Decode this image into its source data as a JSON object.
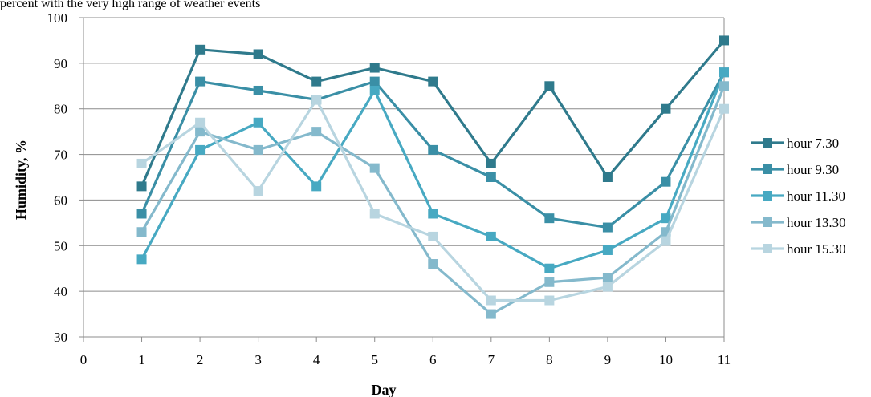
{
  "caption": "percent with the very high range of weather events",
  "chart_data": {
    "type": "line",
    "title": "",
    "xlabel": "Day",
    "ylabel": "Humidity, %",
    "xlim": [
      0,
      11
    ],
    "ylim": [
      30,
      100
    ],
    "x_ticks": [
      "0",
      "1",
      "2",
      "3",
      "4",
      "5",
      "6",
      "7",
      "8",
      "9",
      "10",
      "11"
    ],
    "y_ticks": [
      "30",
      "40",
      "50",
      "60",
      "70",
      "80",
      "90",
      "100"
    ],
    "grid": "horizontal",
    "legend_position": "right",
    "x": [
      1,
      2,
      3,
      4,
      5,
      6,
      7,
      8,
      9,
      10,
      11
    ],
    "series": [
      {
        "name": "hour 7.30",
        "color": "#2f7a8c",
        "values": [
          63,
          93,
          92,
          86,
          89,
          86,
          68,
          85,
          65,
          80,
          95
        ]
      },
      {
        "name": "hour 9.30",
        "color": "#3a8fa6",
        "values": [
          57,
          86,
          84,
          82,
          86,
          71,
          65,
          56,
          54,
          64,
          88
        ]
      },
      {
        "name": "hour 11.30",
        "color": "#47a9c2",
        "values": [
          47,
          71,
          77,
          63,
          84,
          57,
          52,
          45,
          49,
          56,
          88
        ]
      },
      {
        "name": "hour 13.30",
        "color": "#84b9cc",
        "values": [
          53,
          75,
          71,
          75,
          67,
          46,
          35,
          42,
          43,
          53,
          85
        ]
      },
      {
        "name": "hour 15.30",
        "color": "#b8d5e0",
        "values": [
          68,
          77,
          62,
          82,
          57,
          52,
          38,
          38,
          41,
          51,
          80
        ]
      }
    ]
  }
}
